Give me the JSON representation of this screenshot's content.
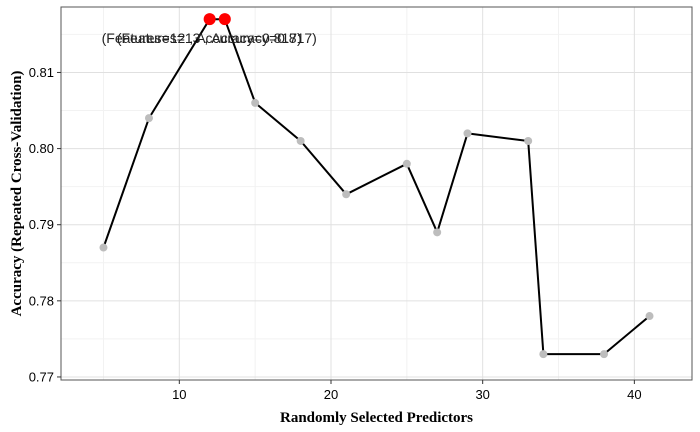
{
  "chart_data": {
    "type": "line",
    "xlabel": "Randomly Selected Predictors",
    "ylabel": "Accuracy (Repeated Cross-Validation)",
    "xlim": [
      2.2,
      43.8
    ],
    "ylim": [
      0.7696,
      0.8186
    ],
    "x_ticks": [
      10,
      20,
      30,
      40
    ],
    "y_ticks": [
      0.77,
      0.78,
      0.79,
      0.8,
      0.81
    ],
    "y_tick_labels": [
      "0.77",
      "0.78",
      "0.79",
      "0.80",
      "0.81"
    ],
    "grid": true,
    "series": [
      {
        "x": [
          5,
          8,
          12,
          13,
          15,
          18,
          21,
          25,
          27,
          29,
          33,
          34,
          38,
          41
        ],
        "y": [
          0.787,
          0.804,
          0.817,
          0.817,
          0.806,
          0.801,
          0.794,
          0.798,
          0.789,
          0.802,
          0.801,
          0.773,
          0.773,
          0.778
        ]
      }
    ],
    "highlight_points": [
      {
        "x": 12,
        "y": 0.817
      },
      {
        "x": 13,
        "y": 0.817
      }
    ],
    "annotations": [
      {
        "text": "(Features=12 , Accuracy=0.817)",
        "x": 12,
        "y": 0.817
      },
      {
        "text": "(Features=13 , Accuracy=0.817)",
        "x": 13,
        "y": 0.817
      }
    ],
    "colors": {
      "line": "#000000",
      "point": "#bdbdbd",
      "highlight": "#ff0000",
      "grid_major": "#e0e0e0",
      "grid_minor": "#f2f2f2",
      "panel_border": "#555555"
    }
  }
}
